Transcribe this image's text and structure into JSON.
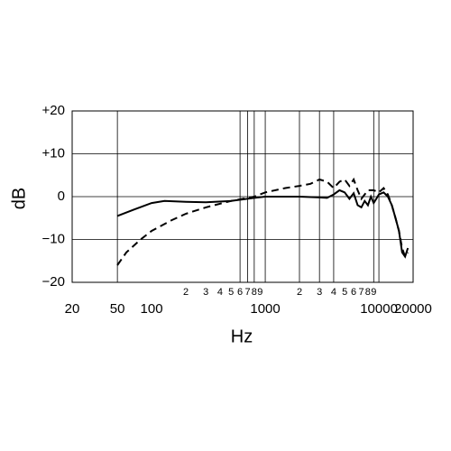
{
  "chart_data": {
    "type": "line",
    "x_label": "Hz",
    "y_label": "dB",
    "log_x": true,
    "grid": true,
    "xlim": [
      20,
      20000
    ],
    "ylim": [
      -20,
      20
    ],
    "xticks": [
      20,
      50,
      100,
      1000,
      10000,
      20000
    ],
    "xminorticks": [
      {
        "value": 200,
        "label": "2"
      },
      {
        "value": 300,
        "label": "3"
      },
      {
        "value": 400,
        "label": "4"
      },
      {
        "value": 500,
        "label": "5"
      },
      {
        "value": 600,
        "label": "6"
      },
      {
        "value": 700,
        "label": "7"
      },
      {
        "value": 800,
        "label": "8"
      },
      {
        "value": 900,
        "label": "9"
      },
      {
        "value": 2000,
        "label": "2"
      },
      {
        "value": 3000,
        "label": "3"
      },
      {
        "value": 4000,
        "label": "4"
      },
      {
        "value": 5000,
        "label": "5"
      },
      {
        "value": 6000,
        "label": "6"
      },
      {
        "value": 7000,
        "label": "7"
      },
      {
        "value": 8000,
        "label": "8"
      },
      {
        "value": 9000,
        "label": "9"
      }
    ],
    "xgrid": [
      50,
      600,
      700,
      800,
      1000,
      2000,
      3000,
      4000,
      9000,
      10000
    ],
    "yticks": [
      {
        "value": 20,
        "label": "+20"
      },
      {
        "value": 10,
        "label": "+10"
      },
      0,
      {
        "value": -10,
        "label": "−10"
      },
      {
        "value": -20,
        "label": "−20"
      }
    ],
    "series": [
      {
        "color": "#000000",
        "dash": "none",
        "x": [
          50,
          70,
          100,
          130,
          200,
          300,
          500,
          800,
          1000,
          2000,
          3000,
          3500,
          4000,
          4500,
          5000,
          5500,
          6000,
          6500,
          7000,
          7500,
          8000,
          8500,
          9000,
          10000,
          11000,
          12000,
          13000,
          14000,
          15000,
          16000,
          17000,
          18000
        ],
        "values": [
          -4.5,
          -3,
          -1.5,
          -1,
          -1.2,
          -1.3,
          -1,
          -0.3,
          0,
          0,
          -0.2,
          -0.3,
          0.5,
          1.5,
          1,
          -0.5,
          0.8,
          -2,
          -2.5,
          -1,
          -2,
          0,
          -1.5,
          0.5,
          1,
          0,
          -2,
          -5,
          -8,
          -13,
          -14,
          -12
        ]
      },
      {
        "color": "#000000",
        "dash": "dash",
        "x": [
          50,
          60,
          80,
          100,
          150,
          200,
          300,
          500,
          800,
          1000,
          1500,
          2000,
          2500,
          3000,
          3500,
          4000,
          4500,
          5000,
          5500,
          6000,
          6500,
          7000,
          8000,
          9000,
          10000,
          11000,
          12000,
          13000,
          14000,
          15000,
          16000,
          17000,
          18000
        ],
        "values": [
          -16,
          -13,
          -10,
          -8,
          -5.5,
          -4,
          -2.5,
          -1,
          0,
          1,
          2,
          2.5,
          3,
          4,
          3.5,
          2,
          3.5,
          4,
          2.5,
          4,
          1.5,
          -0.5,
          1.5,
          1.5,
          1,
          2,
          0.5,
          -2,
          -5,
          -8,
          -12,
          -14,
          -13
        ]
      }
    ]
  }
}
